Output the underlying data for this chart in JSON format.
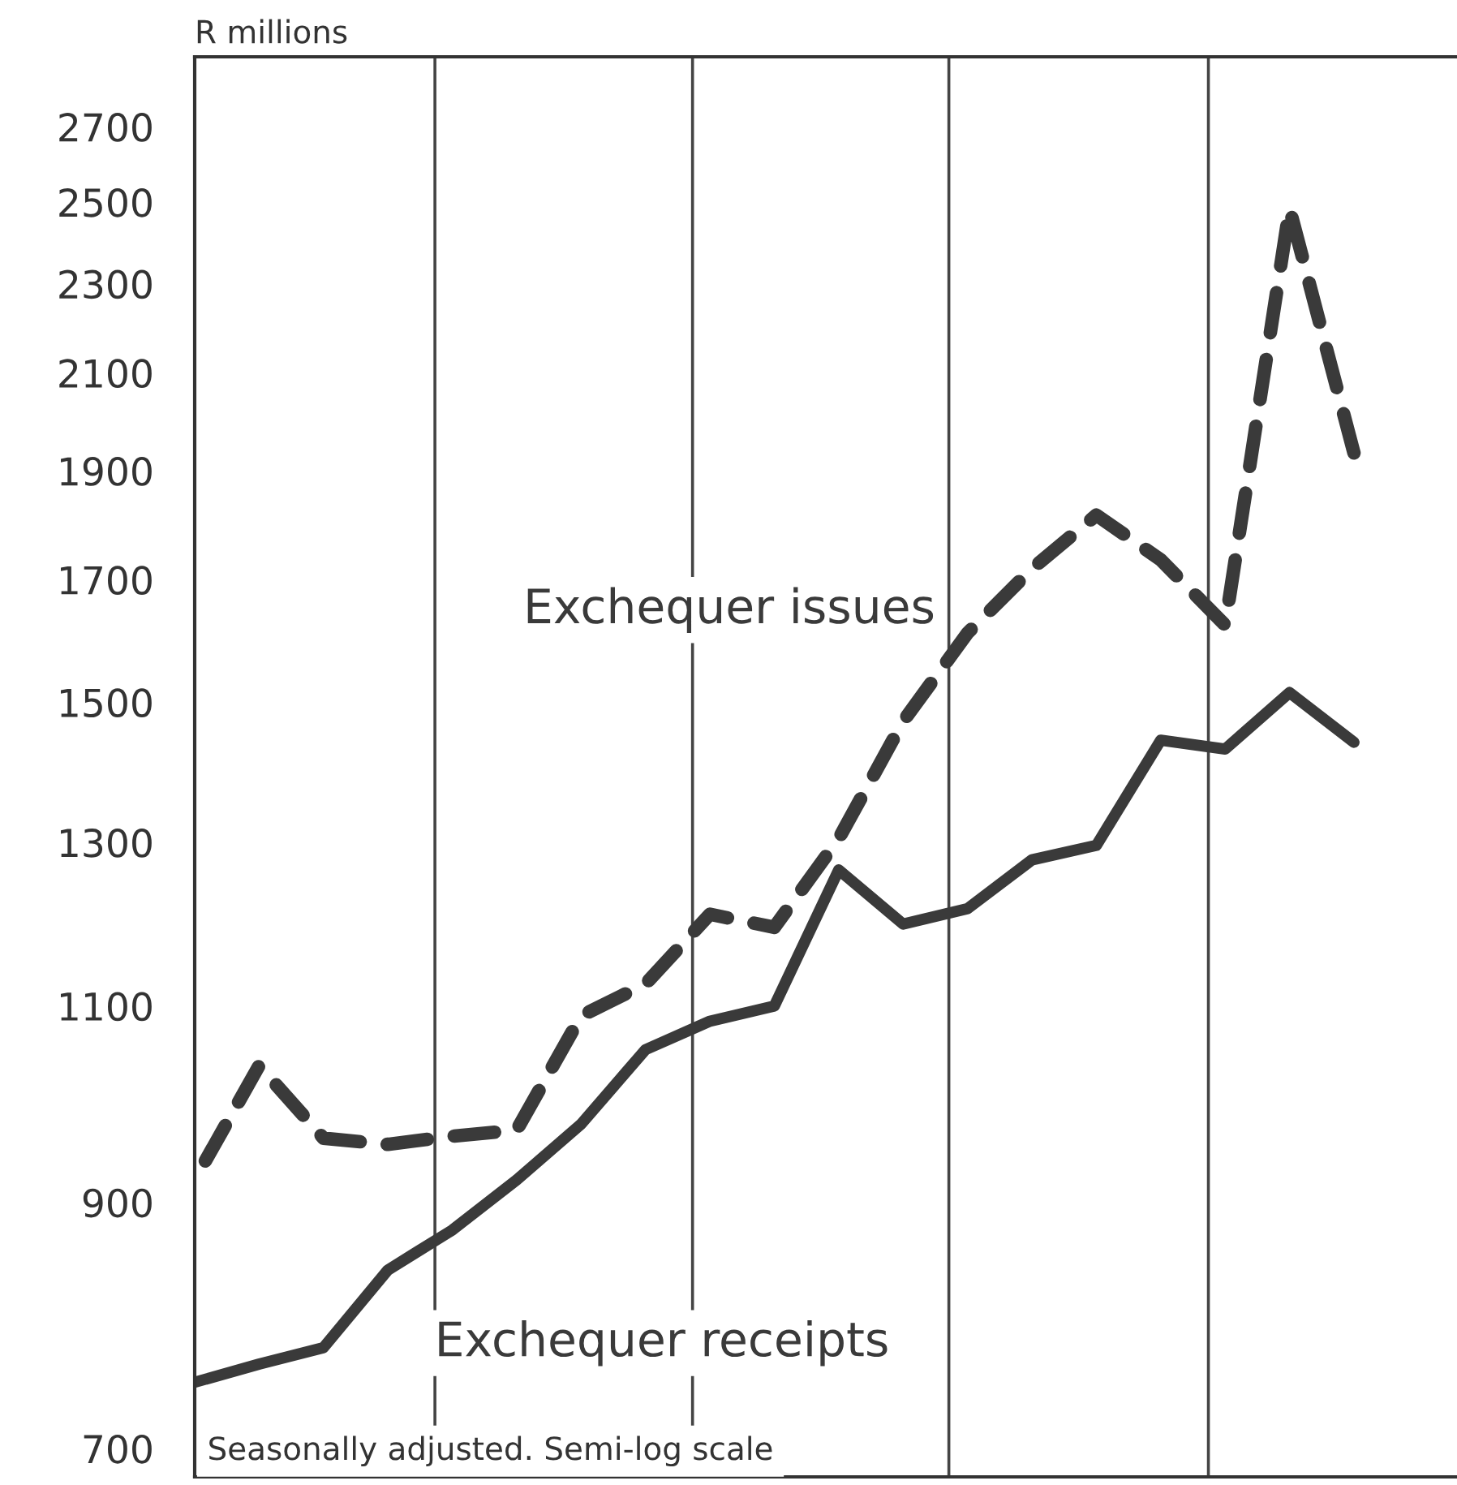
{
  "chart_data": {
    "type": "line",
    "ylabel": "R millions",
    "categories": [
      null,
      null,
      null,
      null,
      null,
      null,
      null,
      null,
      null,
      null,
      null,
      null,
      null,
      null,
      null,
      null,
      null,
      null,
      null
    ],
    "ylim": [
      680,
      2900
    ],
    "log": "y",
    "yticks": [
      700,
      900,
      1100,
      1300,
      1500,
      1700,
      1900,
      2100,
      2300,
      2500,
      2700
    ],
    "tick_labels": "y",
    "grid": false,
    "legend": false,
    "marker": "none",
    "series": [
      {
        "name": "Exchequer issues",
        "color": "#3a3a3a",
        "line_style": "dashed",
        "values": [
          921,
          1035,
          961,
          955,
          963,
          969,
          1089,
          1125,
          1208,
          1192,
          1305,
          1471,
          1610,
          1719,
          1816,
          1735,
          1623,
          2484,
          1935
        ]
      },
      {
        "name": "Exchequer receipts",
        "color": "#3a3a3a",
        "line_style": "solid",
        "values": [
          749,
          763,
          776,
          840,
          875,
          921,
          975,
          1052,
          1083,
          1100,
          1264,
          1196,
          1215,
          1277,
          1296,
          1443,
          1430,
          1515,
          1440
        ]
      }
    ],
    "annotations": [
      "Seasonally adjusted. Semi-log scale"
    ]
  }
}
